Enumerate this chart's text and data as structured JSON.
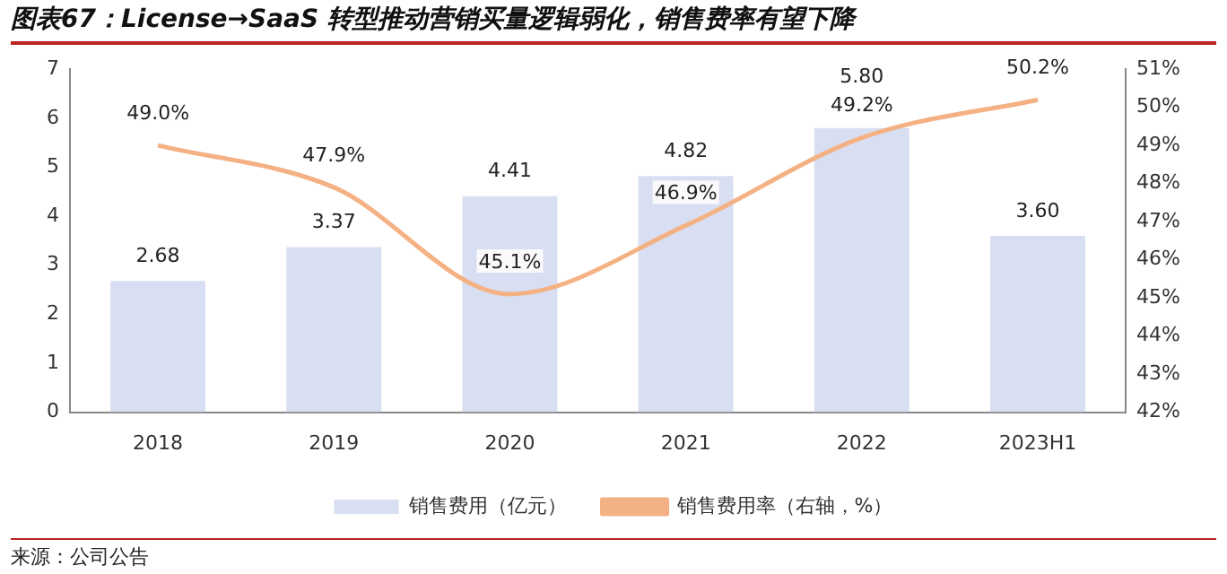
{
  "chart_data": {
    "type": "bar",
    "title": "图表67：License→SaaS 转型推动营销买量逻辑弱化，销售费率有望下降",
    "categories": [
      "2018",
      "2019",
      "2020",
      "2021",
      "2022",
      "2023H1"
    ],
    "series": [
      {
        "name": "销售费用（亿元）",
        "color": "#d9dff2",
        "values": [
          2.68,
          3.37,
          4.41,
          4.82,
          5.8,
          3.6
        ],
        "value_labels": [
          "2.68",
          "3.37",
          "4.41",
          "4.82",
          "5.80",
          "3.60"
        ]
      },
      {
        "name": "销售费用率（右轴，%）",
        "type": "line",
        "axis": "y2",
        "color": "#f4b183",
        "values": [
          49.0,
          47.9,
          45.1,
          46.9,
          49.2,
          50.2
        ],
        "value_labels": [
          "49.0%",
          "47.9%",
          "45.1%",
          "46.9%",
          "49.2%",
          "50.2%"
        ]
      }
    ],
    "ylim": [
      0,
      7
    ],
    "yticks": [
      0,
      1,
      2,
      3,
      4,
      5,
      6,
      7
    ],
    "y2lim": [
      42,
      51
    ],
    "y2ticks": [
      {
        "value": 42,
        "label": "42%"
      },
      {
        "value": 43,
        "label": "43%"
      },
      {
        "value": 44,
        "label": "44%"
      },
      {
        "value": 45,
        "label": "45%"
      },
      {
        "value": 46,
        "label": "46%"
      },
      {
        "value": 47,
        "label": "47%"
      },
      {
        "value": 48,
        "label": "48%"
      },
      {
        "value": 49,
        "label": "49%"
      },
      {
        "value": 50,
        "label": "50%"
      },
      {
        "value": 51,
        "label": "51%"
      }
    ],
    "grid": false,
    "legend": "bottom",
    "marker": "none",
    "annotations": [
      "来源：公司公告"
    ]
  }
}
